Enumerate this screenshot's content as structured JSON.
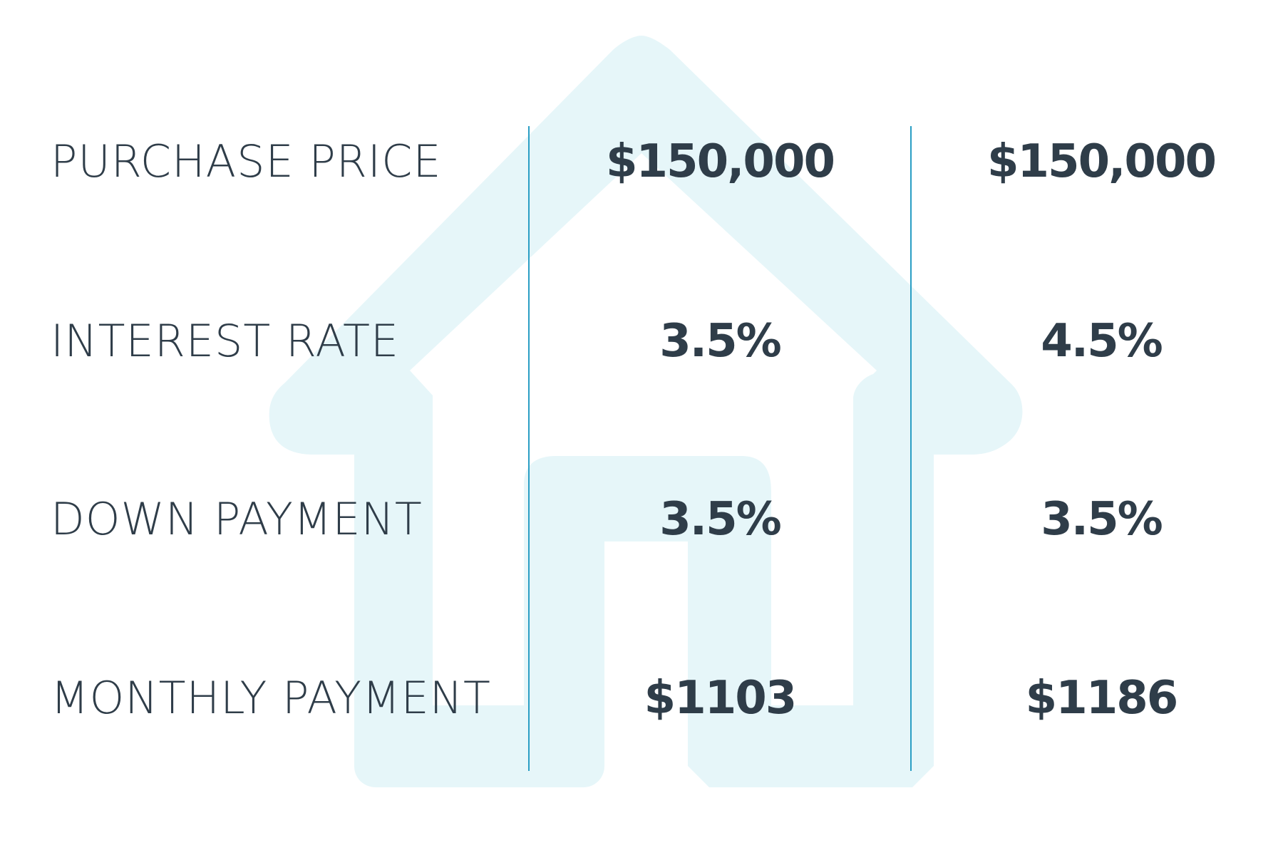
{
  "colors": {
    "background": "#ffffff",
    "text": "#2f3d49",
    "divider": "#2a9ec4",
    "house": "#e6f6f9"
  },
  "icons": {
    "background": "house-icon"
  },
  "rows": [
    {
      "label": "PURCHASE PRICE",
      "col1": "$150,000",
      "col2": "$150,000"
    },
    {
      "label": "INTEREST RATE",
      "col1": "3.5%",
      "col2": "4.5%"
    },
    {
      "label": "DOWN PAYMENT",
      "col1": "3.5%",
      "col2": "3.5%"
    },
    {
      "label": "MONTHLY PAYMENT",
      "col1": "$1103",
      "col2": "$1186"
    }
  ]
}
